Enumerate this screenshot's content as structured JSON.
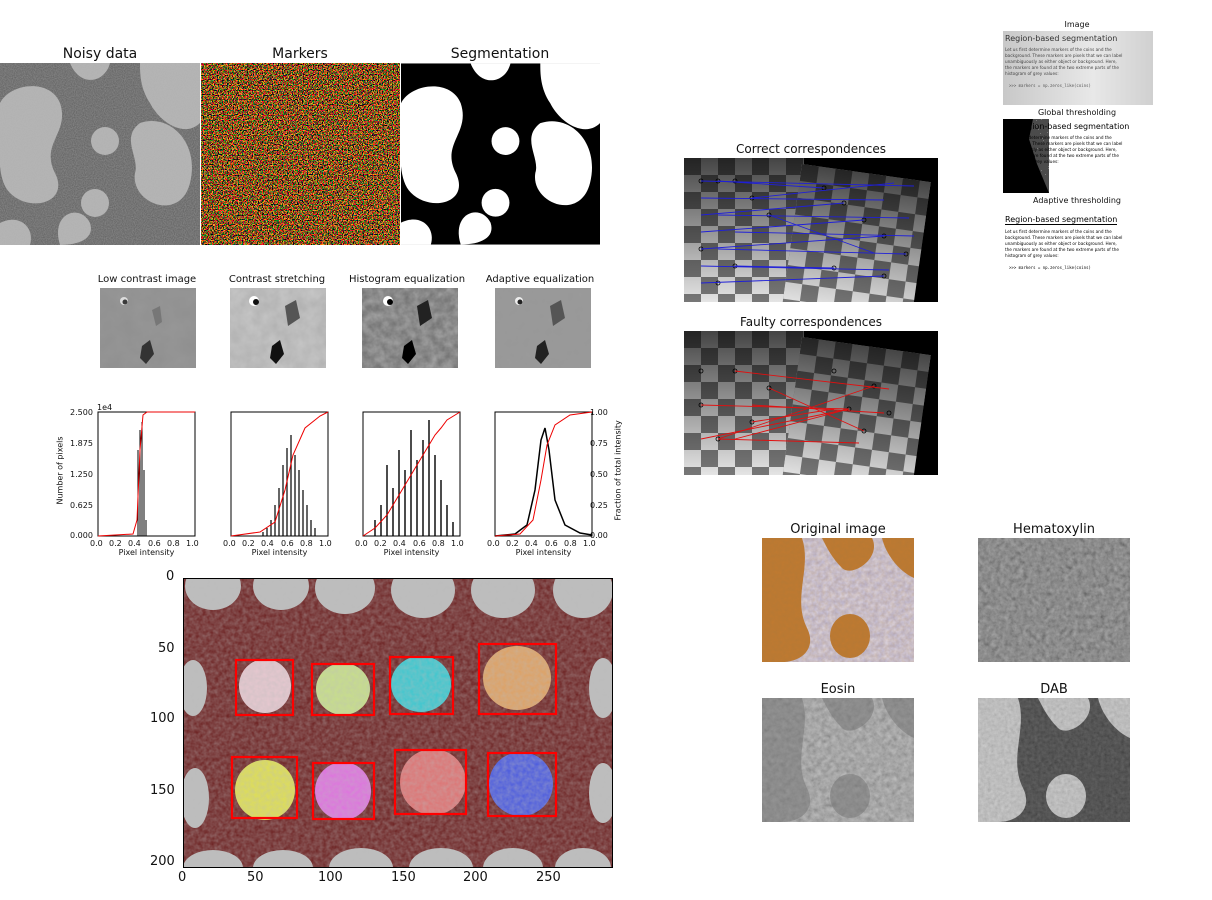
{
  "segmentation": {
    "titles": [
      "Noisy data",
      "Markers",
      "Segmentation"
    ]
  },
  "contrast": {
    "titles": [
      "Low contrast image",
      "Contrast stretching",
      "Histogram equalization",
      "Adaptive equalization"
    ],
    "ylabel_left": "Number of pixels",
    "ylabel_right": "Fraction of total intensity",
    "xlabel": "Pixel intensity",
    "exponent": "1e4",
    "yticks_left": [
      "2.500",
      "1.875",
      "1.250",
      "0.625",
      "0.000"
    ],
    "yticks_right": [
      "1.00",
      "0.75",
      "0.50",
      "0.25",
      "0.00"
    ],
    "xticks": [
      "0.0",
      "0.2",
      "0.4",
      "0.6",
      "0.8",
      "1.0"
    ]
  },
  "coins": {
    "yticks": [
      "0",
      "50",
      "100",
      "150",
      "200"
    ],
    "xticks": [
      "0",
      "50",
      "100",
      "150",
      "200",
      "250"
    ],
    "box_color": "#ff0000"
  },
  "correspondences": {
    "correct_title": "Correct correspondences",
    "faulty_title": "Faulty correspondences",
    "correct_color": "#1f1fd8",
    "faulty_color": "#e01010"
  },
  "threshold": {
    "titles": [
      "Image",
      "Global thresholding",
      "Adaptive thresholding"
    ],
    "doc_heading": "Region-based segmentation",
    "doc_lines": [
      "Let us first determine markers of the coins and the",
      "background. These markers are pixels that we can label",
      "unambiguously as either object or background. Here,",
      "the markers are found at the two extreme parts of the",
      "histogram of grey values:"
    ],
    "doc_code": ">>> markers = np.zeros_like(coins)"
  },
  "stain": {
    "titles": [
      "Original image",
      "Hematoxylin",
      "Eosin",
      "DAB"
    ]
  }
}
